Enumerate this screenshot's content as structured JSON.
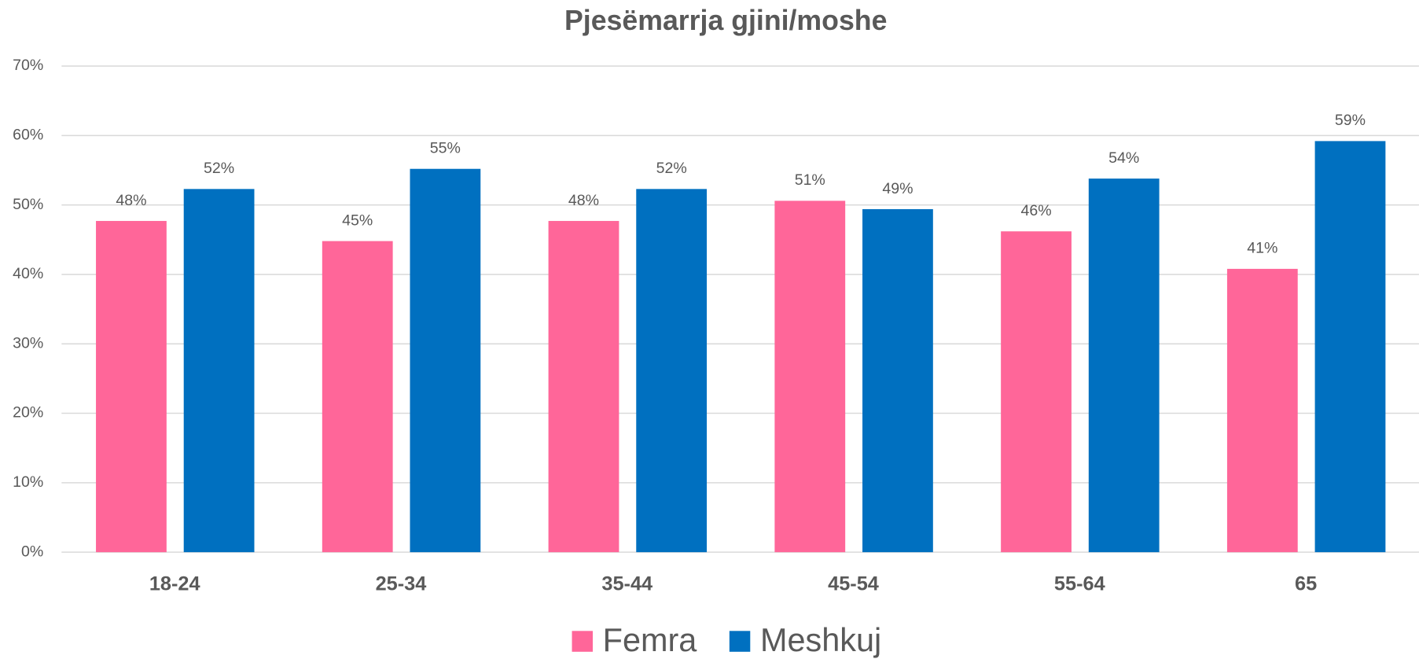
{
  "chart_data": {
    "type": "bar",
    "title": "Pjesëmarrja gjini/moshe",
    "categories": [
      "18-24",
      "25-34",
      "35-44",
      "45-54",
      "55-64",
      "65"
    ],
    "series": [
      {
        "name": "Femra",
        "color": "#FF6699",
        "values": [
          47.7,
          44.8,
          47.7,
          50.6,
          46.2,
          40.8
        ],
        "value_labels": [
          "48%",
          "45%",
          "48%",
          "51%",
          "46%",
          "41%"
        ]
      },
      {
        "name": "Meshkuj",
        "color": "#0070C0",
        "values": [
          52.3,
          55.2,
          52.3,
          49.4,
          53.8,
          59.2
        ],
        "value_labels": [
          "52%",
          "55%",
          "52%",
          "49%",
          "54%",
          "59%"
        ]
      }
    ],
    "ylim": [
      0,
      70
    ],
    "yticks": [
      {
        "value": 0,
        "label": "0%"
      },
      {
        "value": 10,
        "label": "10%"
      },
      {
        "value": 20,
        "label": "20%"
      },
      {
        "value": 30,
        "label": "30%"
      },
      {
        "value": 40,
        "label": "40%"
      },
      {
        "value": 50,
        "label": "50%"
      },
      {
        "value": 60,
        "label": "60%"
      },
      {
        "value": 70,
        "label": "70%"
      }
    ],
    "grid": true,
    "legend": "bottom"
  }
}
